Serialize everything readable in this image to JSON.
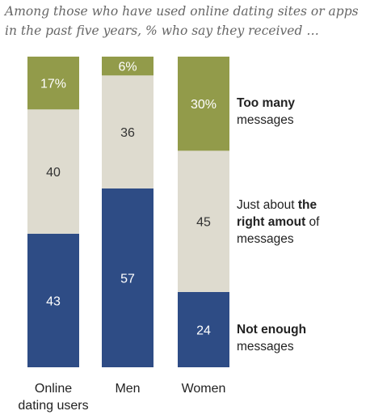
{
  "subtitle": "Among those who have used online dating sites or apps in the past five years, % who say they received …",
  "chart_data": {
    "type": "bar",
    "stacked": true,
    "categories": [
      "Online dating users",
      "Men",
      "Women"
    ],
    "category_lines": [
      [
        "Online",
        "dating users"
      ],
      [
        "Men"
      ],
      [
        "Women"
      ]
    ],
    "series": [
      {
        "name": "Not enough messages",
        "values": [
          43,
          57,
          24
        ],
        "labels": [
          "43",
          "57",
          "24"
        ],
        "color": "#2e4c85",
        "text_color": "#ffffff"
      },
      {
        "name": "Just about the right amout of messages",
        "values": [
          40,
          36,
          45
        ],
        "labels": [
          "40",
          "36",
          "45"
        ],
        "color": "#dedbcf",
        "text_color": "#333333"
      },
      {
        "name": "Too many messages",
        "values": [
          17,
          6,
          30
        ],
        "labels": [
          "17%",
          "6%",
          "30%"
        ],
        "color": "#929b4a",
        "text_color": "#ffffff"
      }
    ],
    "legend": {
      "too_many": {
        "bold": "Too many",
        "rest": "messages"
      },
      "right": {
        "pre": "Just about ",
        "bold": "the right amout",
        "post": " of",
        "rest": "messages"
      },
      "not_enough": {
        "bold": "Not enough",
        "rest": "messages"
      }
    }
  }
}
